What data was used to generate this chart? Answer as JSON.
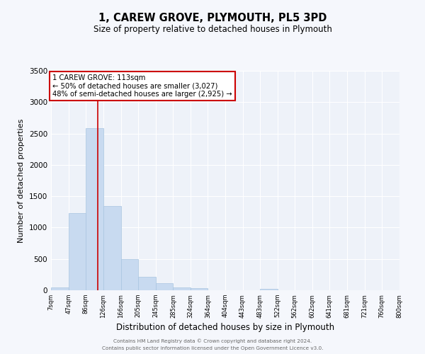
{
  "title": "1, CAREW GROVE, PLYMOUTH, PL5 3PD",
  "subtitle": "Size of property relative to detached houses in Plymouth",
  "xlabel": "Distribution of detached houses by size in Plymouth",
  "ylabel": "Number of detached properties",
  "bar_color": "#c8daf0",
  "bar_edgecolor": "#a8c4e0",
  "bg_color": "#eef2f9",
  "grid_color": "#ffffff",
  "bin_edges": [
    7,
    47,
    86,
    126,
    166,
    205,
    245,
    285,
    324,
    364,
    404,
    443,
    483,
    522,
    562,
    602,
    641,
    681,
    721,
    760,
    800
  ],
  "bin_labels": [
    "7sqm",
    "47sqm",
    "86sqm",
    "126sqm",
    "166sqm",
    "205sqm",
    "245sqm",
    "285sqm",
    "324sqm",
    "364sqm",
    "404sqm",
    "443sqm",
    "483sqm",
    "522sqm",
    "562sqm",
    "602sqm",
    "641sqm",
    "681sqm",
    "721sqm",
    "760sqm",
    "800sqm"
  ],
  "counts": [
    50,
    1230,
    2590,
    1340,
    500,
    215,
    115,
    50,
    30,
    0,
    0,
    0,
    20,
    0,
    0,
    0,
    0,
    0,
    0,
    0
  ],
  "vline_x": 113,
  "vline_color": "#cc0000",
  "annotation_lines": [
    "1 CAREW GROVE: 113sqm",
    "← 50% of detached houses are smaller (3,027)",
    "48% of semi-detached houses are larger (2,925) →"
  ],
  "annotation_box_color": "#ffffff",
  "annotation_box_edgecolor": "#cc0000",
  "ylim": [
    0,
    3500
  ],
  "yticks": [
    0,
    500,
    1000,
    1500,
    2000,
    2500,
    3000,
    3500
  ],
  "footer1": "Contains HM Land Registry data © Crown copyright and database right 2024.",
  "footer2": "Contains public sector information licensed under the Open Government Licence v3.0."
}
